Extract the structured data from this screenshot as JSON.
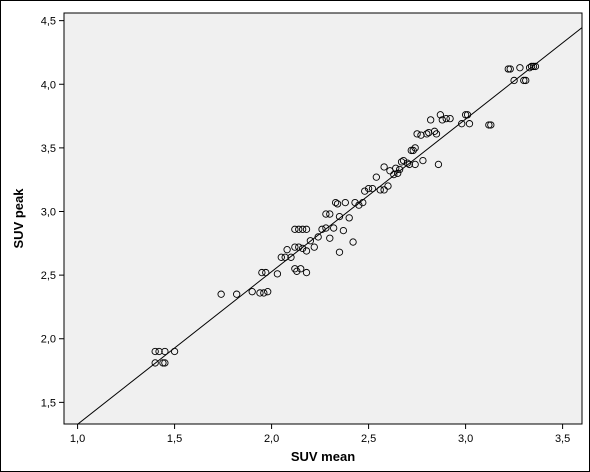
{
  "chart_data": {
    "type": "scatter",
    "xlabel": "SUV mean",
    "ylabel": "SUV peak",
    "xlim": [
      0.93,
      3.6
    ],
    "ylim": [
      1.33,
      4.56
    ],
    "xticks": [
      1.0,
      1.5,
      2.0,
      2.5,
      3.0,
      3.5
    ],
    "yticks": [
      1.5,
      2.0,
      2.5,
      3.0,
      3.5,
      4.0,
      4.5
    ],
    "xtick_labels": [
      "1,0",
      "1,5",
      "2,0",
      "2,5",
      "3,0",
      "3,5"
    ],
    "ytick_labels": [
      "1,5",
      "2,0",
      "2,5",
      "3,0",
      "3,5",
      "4,0",
      "4,5"
    ],
    "grid": false,
    "plot_background": "#f0f0f0",
    "marker": "open-circle",
    "fit_line": {
      "slope": 1.199,
      "intercept": 0.1289
    },
    "points": [
      [
        1.4,
        1.9
      ],
      [
        1.4,
        1.81
      ],
      [
        1.42,
        1.9
      ],
      [
        1.44,
        1.81
      ],
      [
        1.45,
        1.81
      ],
      [
        1.45,
        1.9
      ],
      [
        1.5,
        1.9
      ],
      [
        1.74,
        2.35
      ],
      [
        1.82,
        2.35
      ],
      [
        1.9,
        2.37
      ],
      [
        1.94,
        2.36
      ],
      [
        1.96,
        2.36
      ],
      [
        1.98,
        2.37
      ],
      [
        1.95,
        2.52
      ],
      [
        1.97,
        2.52
      ],
      [
        2.03,
        2.51
      ],
      [
        2.05,
        2.64
      ],
      [
        2.07,
        2.64
      ],
      [
        2.08,
        2.7
      ],
      [
        2.1,
        2.64
      ],
      [
        2.12,
        2.55
      ],
      [
        2.13,
        2.53
      ],
      [
        2.15,
        2.55
      ],
      [
        2.12,
        2.72
      ],
      [
        2.14,
        2.72
      ],
      [
        2.16,
        2.71
      ],
      [
        2.18,
        2.69
      ],
      [
        2.2,
        2.77
      ],
      [
        2.12,
        2.86
      ],
      [
        2.14,
        2.86
      ],
      [
        2.16,
        2.86
      ],
      [
        2.18,
        2.86
      ],
      [
        2.22,
        2.72
      ],
      [
        2.24,
        2.8
      ],
      [
        2.26,
        2.86
      ],
      [
        2.28,
        2.98
      ],
      [
        2.3,
        2.98
      ],
      [
        2.32,
        2.87
      ],
      [
        2.33,
        3.07
      ],
      [
        2.34,
        3.06
      ],
      [
        2.35,
        2.68
      ],
      [
        2.37,
        2.85
      ],
      [
        2.3,
        2.79
      ],
      [
        2.35,
        2.96
      ],
      [
        2.38,
        3.07
      ],
      [
        2.4,
        2.95
      ],
      [
        2.42,
        2.76
      ],
      [
        2.18,
        2.52
      ],
      [
        2.28,
        2.87
      ],
      [
        2.43,
        3.07
      ],
      [
        2.45,
        3.05
      ],
      [
        2.47,
        3.07
      ],
      [
        2.48,
        3.16
      ],
      [
        2.5,
        3.18
      ],
      [
        2.52,
        3.18
      ],
      [
        2.54,
        3.27
      ],
      [
        2.56,
        3.17
      ],
      [
        2.58,
        3.17
      ],
      [
        2.6,
        3.2
      ],
      [
        2.58,
        3.35
      ],
      [
        2.61,
        3.32
      ],
      [
        2.63,
        3.29
      ],
      [
        2.64,
        3.34
      ],
      [
        2.65,
        3.3
      ],
      [
        2.66,
        3.33
      ],
      [
        2.67,
        3.39
      ],
      [
        2.68,
        3.4
      ],
      [
        2.7,
        3.38
      ],
      [
        2.71,
        3.37
      ],
      [
        2.72,
        3.48
      ],
      [
        2.73,
        3.48
      ],
      [
        2.74,
        3.5
      ],
      [
        2.74,
        3.37
      ],
      [
        2.75,
        3.61
      ],
      [
        2.77,
        3.6
      ],
      [
        2.78,
        3.4
      ],
      [
        2.8,
        3.61
      ],
      [
        2.81,
        3.62
      ],
      [
        2.82,
        3.72
      ],
      [
        2.84,
        3.63
      ],
      [
        2.85,
        3.61
      ],
      [
        2.86,
        3.37
      ],
      [
        2.87,
        3.76
      ],
      [
        2.88,
        3.72
      ],
      [
        2.9,
        3.73
      ],
      [
        2.92,
        3.73
      ],
      [
        2.98,
        3.69
      ],
      [
        3.0,
        3.76
      ],
      [
        3.01,
        3.76
      ],
      [
        3.02,
        3.69
      ],
      [
        3.12,
        3.68
      ],
      [
        3.13,
        3.68
      ],
      [
        3.22,
        4.12
      ],
      [
        3.23,
        4.12
      ],
      [
        3.25,
        4.03
      ],
      [
        3.28,
        4.13
      ],
      [
        3.3,
        4.03
      ],
      [
        3.31,
        4.03
      ],
      [
        3.33,
        4.13
      ],
      [
        3.34,
        4.14
      ],
      [
        3.35,
        4.14
      ],
      [
        3.36,
        4.14
      ]
    ]
  }
}
